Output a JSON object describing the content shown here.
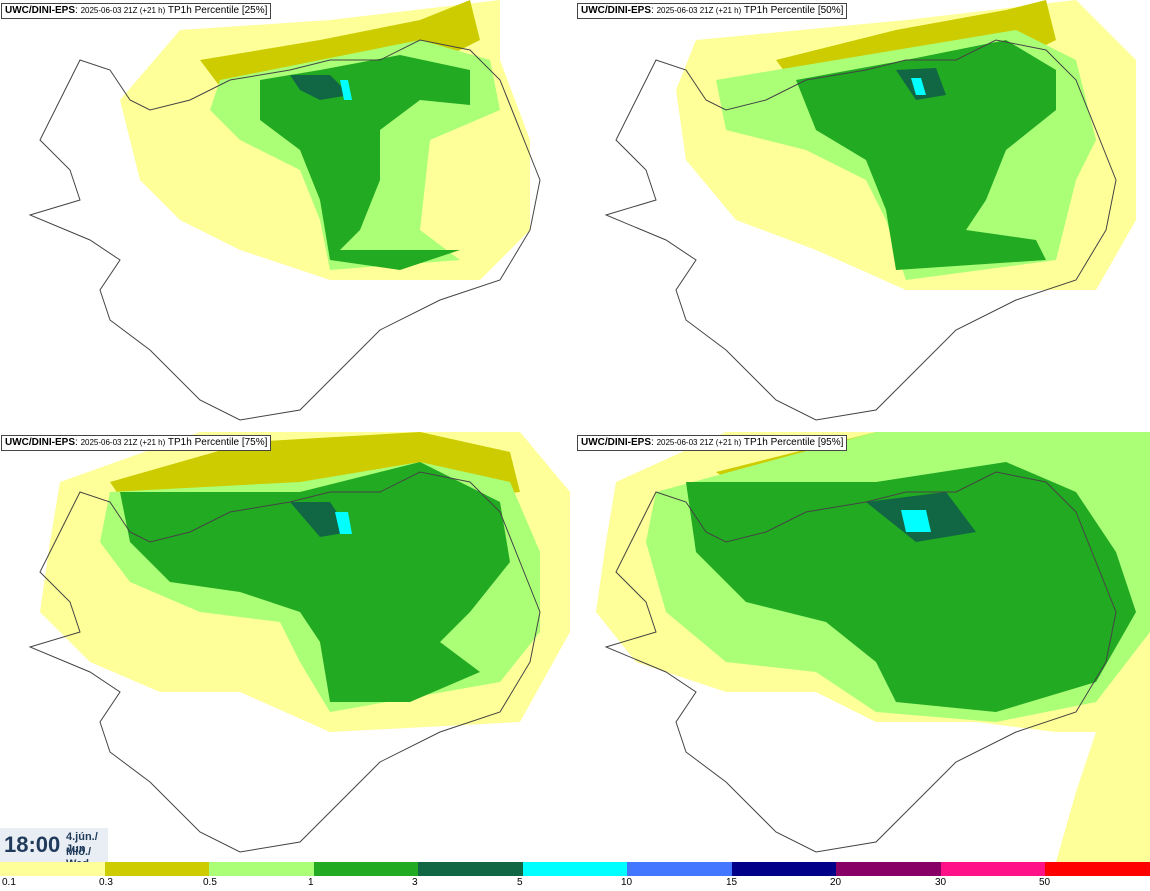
{
  "panels": [
    {
      "title_bold": "UWC/DINI-EPS",
      "title_mid": "2025-06-03 21Z (+21 h)",
      "title_end": "TP1h Percentile [25%]"
    },
    {
      "title_bold": "UWC/DINI-EPS",
      "title_mid": "2025-06-03 21Z (+21 h)",
      "title_end": "TP1h Percentile [50%]"
    },
    {
      "title_bold": "UWC/DINI-EPS",
      "title_mid": "2025-06-03 21Z (+21 h)",
      "title_end": "TP1h Percentile [75%]"
    },
    {
      "title_bold": "UWC/DINI-EPS",
      "title_mid": "2025-06-03 21Z (+21 h)",
      "title_end": "TP1h Percentile [95%]"
    }
  ],
  "valid_time": {
    "time": "18:00",
    "date_line1": "4.jún./ Jun",
    "date_line2": "Mið./ Wed"
  },
  "legend": {
    "colors": [
      "#ffff99",
      "#cccc00",
      "#aaff77",
      "#22aa22",
      "#116644",
      "#00ffff",
      "#4477ff",
      "#000088",
      "#880066",
      "#ff1188",
      "#ff0000"
    ],
    "tick_labels": [
      "0.1",
      "0.3",
      "0.5",
      "1",
      "3",
      "5",
      "10",
      "15",
      "20",
      "30",
      "50"
    ]
  }
}
